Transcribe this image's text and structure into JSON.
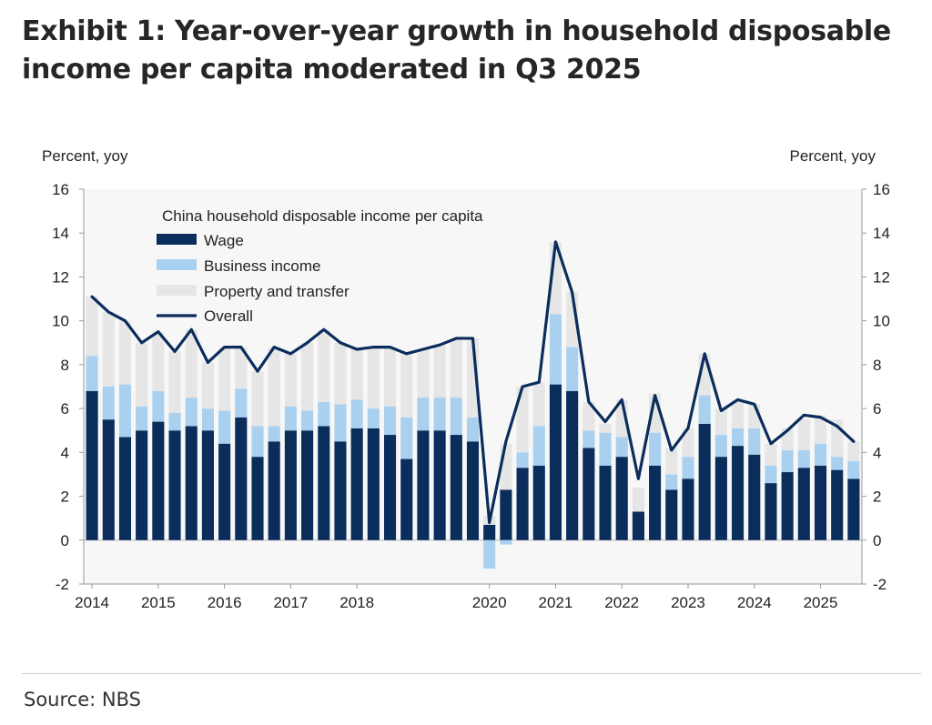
{
  "title": "Exhibit 1: Year-over-year growth in household disposable income per capita moderated in Q3 2025",
  "source": "Source: NBS",
  "colors": {
    "wage": "#0b2d5b",
    "business": "#a9d1ef",
    "property": "#e6e6e6",
    "overall": "#0b2d5b",
    "plot_bg": "#f7f7f7"
  },
  "chart_data": {
    "type": "bar",
    "stacked": true,
    "title": "China household disposable income per capita",
    "ylabel_left": "Percent, yoy",
    "ylabel_right": "Percent, yoy",
    "ylim": [
      -2,
      16
    ],
    "yticks": [
      -2,
      0,
      2,
      4,
      6,
      8,
      10,
      12,
      14,
      16
    ],
    "x": [
      "2014Q1",
      "2014Q2",
      "2014Q3",
      "2014Q4",
      "2015Q1",
      "2015Q2",
      "2015Q3",
      "2015Q4",
      "2016Q1",
      "2016Q2",
      "2016Q3",
      "2016Q4",
      "2017Q1",
      "2017Q2",
      "2017Q3",
      "2017Q4",
      "2018Q1",
      "2018Q2",
      "2018Q3",
      "2018Q4",
      "2019Q1",
      "2019Q2",
      "2019Q3",
      "2019Q4",
      "2020Q1",
      "2020Q2",
      "2020Q3",
      "2020Q4",
      "2021Q1",
      "2021Q2",
      "2021Q3",
      "2021Q4",
      "2022Q1",
      "2022Q2",
      "2022Q3",
      "2022Q4",
      "2023Q1",
      "2023Q2",
      "2023Q3",
      "2023Q4",
      "2024Q1",
      "2024Q2",
      "2024Q3",
      "2024Q4",
      "2025Q1",
      "2025Q2",
      "2025Q3"
    ],
    "xticks": [
      {
        "label": "2014",
        "index": 0
      },
      {
        "label": "2015",
        "index": 4
      },
      {
        "label": "2016",
        "index": 8
      },
      {
        "label": "2017",
        "index": 12
      },
      {
        "label": "2018",
        "index": 16
      },
      {
        "label": "2020",
        "index": 24
      },
      {
        "label": "2021",
        "index": 28
      },
      {
        "label": "2022",
        "index": 32
      },
      {
        "label": "2023",
        "index": 36
      },
      {
        "label": "2024",
        "index": 40
      },
      {
        "label": "2025",
        "index": 44
      }
    ],
    "legend_position": "top-left",
    "series": [
      {
        "name": "Wage",
        "kind": "bar",
        "values": [
          6.8,
          5.5,
          4.7,
          5.0,
          5.4,
          5.0,
          5.2,
          5.0,
          4.4,
          5.6,
          3.8,
          4.5,
          5.0,
          5.0,
          5.2,
          4.5,
          5.1,
          5.1,
          4.8,
          3.7,
          5.0,
          5.0,
          4.8,
          4.5,
          0.7,
          2.3,
          3.3,
          3.4,
          7.1,
          6.8,
          4.2,
          3.4,
          3.8,
          1.3,
          3.4,
          2.3,
          2.8,
          5.3,
          3.8,
          4.3,
          3.9,
          2.6,
          3.1,
          3.3,
          3.4,
          3.2,
          2.8
        ]
      },
      {
        "name": "Business income",
        "kind": "bar",
        "values": [
          1.6,
          1.5,
          2.4,
          1.1,
          1.4,
          0.8,
          1.3,
          1.0,
          1.5,
          1.3,
          1.4,
          0.7,
          1.1,
          0.9,
          1.1,
          1.7,
          1.3,
          0.9,
          1.3,
          1.9,
          1.5,
          1.5,
          1.7,
          1.1,
          -1.3,
          -0.2,
          0.7,
          1.8,
          3.2,
          2.0,
          0.8,
          1.5,
          0.9,
          0.0,
          1.5,
          0.7,
          1.0,
          1.3,
          1.0,
          0.8,
          1.2,
          0.8,
          1.0,
          0.8,
          1.0,
          0.6,
          0.8
        ]
      },
      {
        "name": "Property and transfer",
        "kind": "bar",
        "values": [
          2.7,
          3.4,
          2.9,
          2.9,
          2.7,
          2.8,
          3.1,
          2.1,
          2.9,
          1.9,
          2.5,
          3.6,
          2.4,
          3.1,
          3.3,
          2.8,
          2.3,
          2.8,
          2.7,
          2.9,
          2.2,
          2.4,
          2.7,
          3.6,
          0.4,
          2.1,
          3.0,
          2.0,
          3.3,
          2.5,
          1.3,
          0.4,
          1.7,
          1.1,
          1.8,
          1.2,
          1.3,
          1.9,
          1.2,
          1.3,
          1.1,
          1.0,
          1.0,
          1.4,
          1.3,
          1.7,
          0.9
        ]
      },
      {
        "name": "Overall",
        "kind": "line",
        "values": [
          11.1,
          10.4,
          10.0,
          9.0,
          9.5,
          8.6,
          9.6,
          8.1,
          8.8,
          8.8,
          7.7,
          8.8,
          8.5,
          9.0,
          9.6,
          9.0,
          8.7,
          8.8,
          8.8,
          8.5,
          8.7,
          8.9,
          9.2,
          9.2,
          0.8,
          4.5,
          7.0,
          7.2,
          13.6,
          11.3,
          6.3,
          5.4,
          6.4,
          2.8,
          6.6,
          4.1,
          5.1,
          8.5,
          5.9,
          6.4,
          6.2,
          4.4,
          5.0,
          5.7,
          5.6,
          5.2,
          4.5
        ]
      }
    ]
  }
}
